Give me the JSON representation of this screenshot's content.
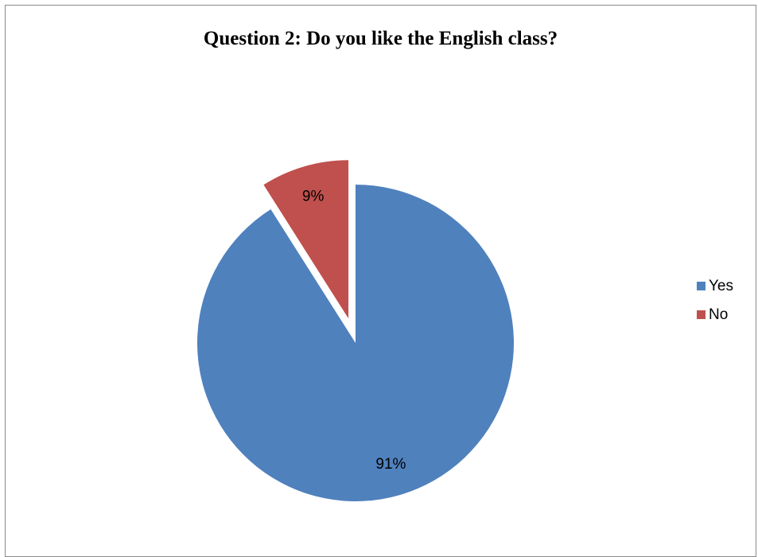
{
  "chart_data": {
    "type": "pie",
    "title": "Question 2: Do you like the English class?",
    "categories": [
      "Yes",
      "No"
    ],
    "values": [
      91,
      9
    ],
    "value_labels": [
      "91%",
      "9%"
    ],
    "colors": [
      "#4f81bd",
      "#c0504d"
    ],
    "exploded": [
      false,
      true
    ],
    "legend_position": "right"
  },
  "legend": {
    "items": [
      {
        "label": "Yes",
        "color": "#4f81bd"
      },
      {
        "label": "No",
        "color": "#c0504d"
      }
    ]
  }
}
